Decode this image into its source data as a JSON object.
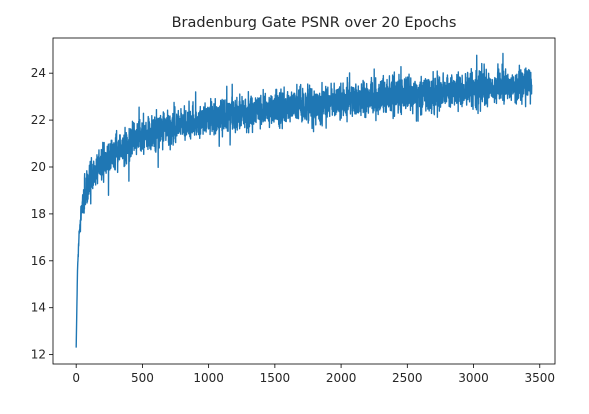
{
  "chart_data": {
    "type": "line",
    "title": "Bradenburg Gate PSNR over 20 Epochs",
    "xlabel": "",
    "ylabel": "",
    "xlim": [
      -175,
      3615
    ],
    "ylim": [
      11.6,
      25.5
    ],
    "x_ticks": [
      0,
      500,
      1000,
      1500,
      2000,
      2500,
      3000,
      3500
    ],
    "y_ticks": [
      12,
      14,
      16,
      18,
      20,
      22,
      24
    ],
    "grid": false,
    "legend": "none",
    "series_color": "#1f77b4",
    "num_points": 3440,
    "trend_points": {
      "x": [
        0,
        10,
        20,
        40,
        70,
        100,
        150,
        200,
        300,
        400,
        500,
        700,
        1000,
        1500,
        2000,
        2500,
        3000,
        3439
      ],
      "y": [
        12.3,
        15.6,
        17.0,
        18.1,
        18.9,
        19.4,
        19.8,
        20.2,
        20.7,
        21.0,
        21.3,
        21.7,
        22.1,
        22.5,
        22.8,
        23.1,
        23.3,
        23.5
      ]
    },
    "noise_amplitude": 0.55,
    "noise_spikes": 0.6
  }
}
